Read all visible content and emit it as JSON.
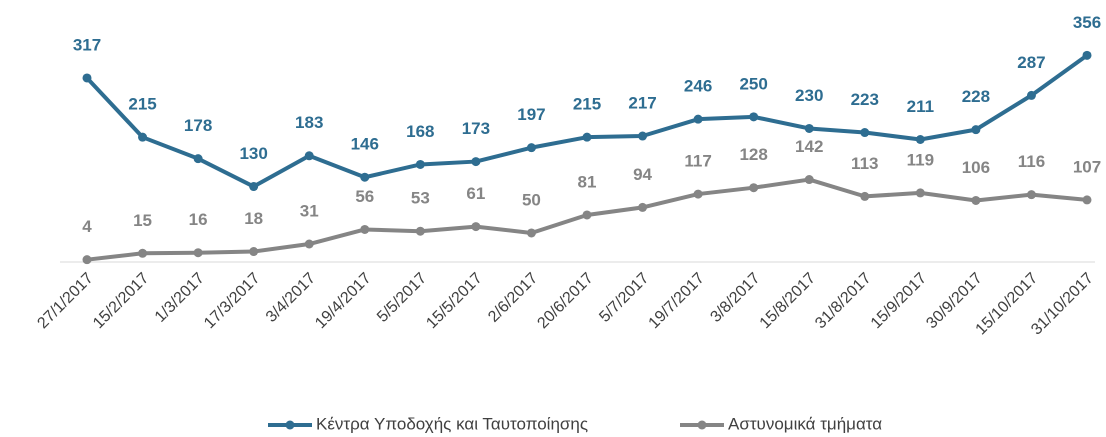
{
  "chart_data": {
    "type": "line",
    "categories": [
      "27/1/2017",
      "15/2/2017",
      "1/3/2017",
      "17/3/2017",
      "3/4/2017",
      "19/4/2017",
      "5/5/2017",
      "15/5/2017",
      "2/6/2017",
      "20/6/2017",
      "5/7/2017",
      "19/7/2017",
      "3/8/2017",
      "15/8/2017",
      "31/8/2017",
      "15/9/2017",
      "30/9/2017",
      "15/10/2017",
      "31/10/2017"
    ],
    "series": [
      {
        "name": "Κέντρα Υποδοχής και Ταυτοποίησης",
        "color": "#2e6d91",
        "values": [
          317,
          215,
          178,
          130,
          183,
          146,
          168,
          173,
          197,
          215,
          217,
          246,
          250,
          230,
          223,
          211,
          228,
          287,
          356
        ]
      },
      {
        "name": "Αστυνομικά τμήματα",
        "color": "#858585",
        "values": [
          4,
          15,
          16,
          18,
          31,
          56,
          53,
          61,
          50,
          81,
          94,
          117,
          128,
          142,
          113,
          119,
          106,
          116,
          107
        ]
      }
    ],
    "ylim": [
      0,
      360
    ],
    "legend": "bottom"
  }
}
